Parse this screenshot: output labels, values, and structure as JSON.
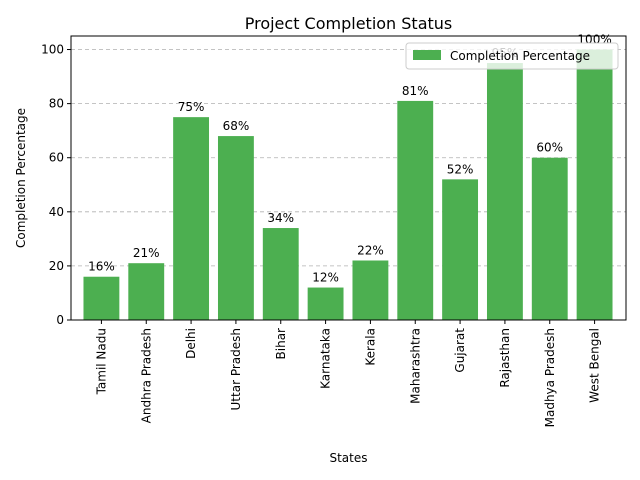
{
  "chart_data": {
    "type": "bar",
    "title": "Project Completion Status",
    "xlabel": "States",
    "ylabel": "Completion Percentage",
    "categories": [
      "Tamil Nadu",
      "Andhra Pradesh",
      "Delhi",
      "Uttar Pradesh",
      "Bihar",
      "Karnataka",
      "Kerala",
      "Maharashtra",
      "Gujarat",
      "Rajasthan",
      "Madhya Pradesh",
      "West Bengal"
    ],
    "series": [
      {
        "name": "Completion Percentage",
        "values": [
          16,
          21,
          75,
          68,
          34,
          12,
          22,
          81,
          52,
          95,
          60,
          100
        ],
        "data_labels": [
          "16%",
          "21%",
          "75%",
          "68%",
          "34%",
          "12%",
          "22%",
          "81%",
          "52%",
          "95%",
          "60%",
          "100%"
        ]
      }
    ],
    "ylim": [
      0,
      105
    ],
    "yticks": [
      0,
      20,
      40,
      60,
      80,
      100
    ],
    "grid": "y-dashed",
    "legend_position": "top-right",
    "bar_color": "#4caf50"
  }
}
